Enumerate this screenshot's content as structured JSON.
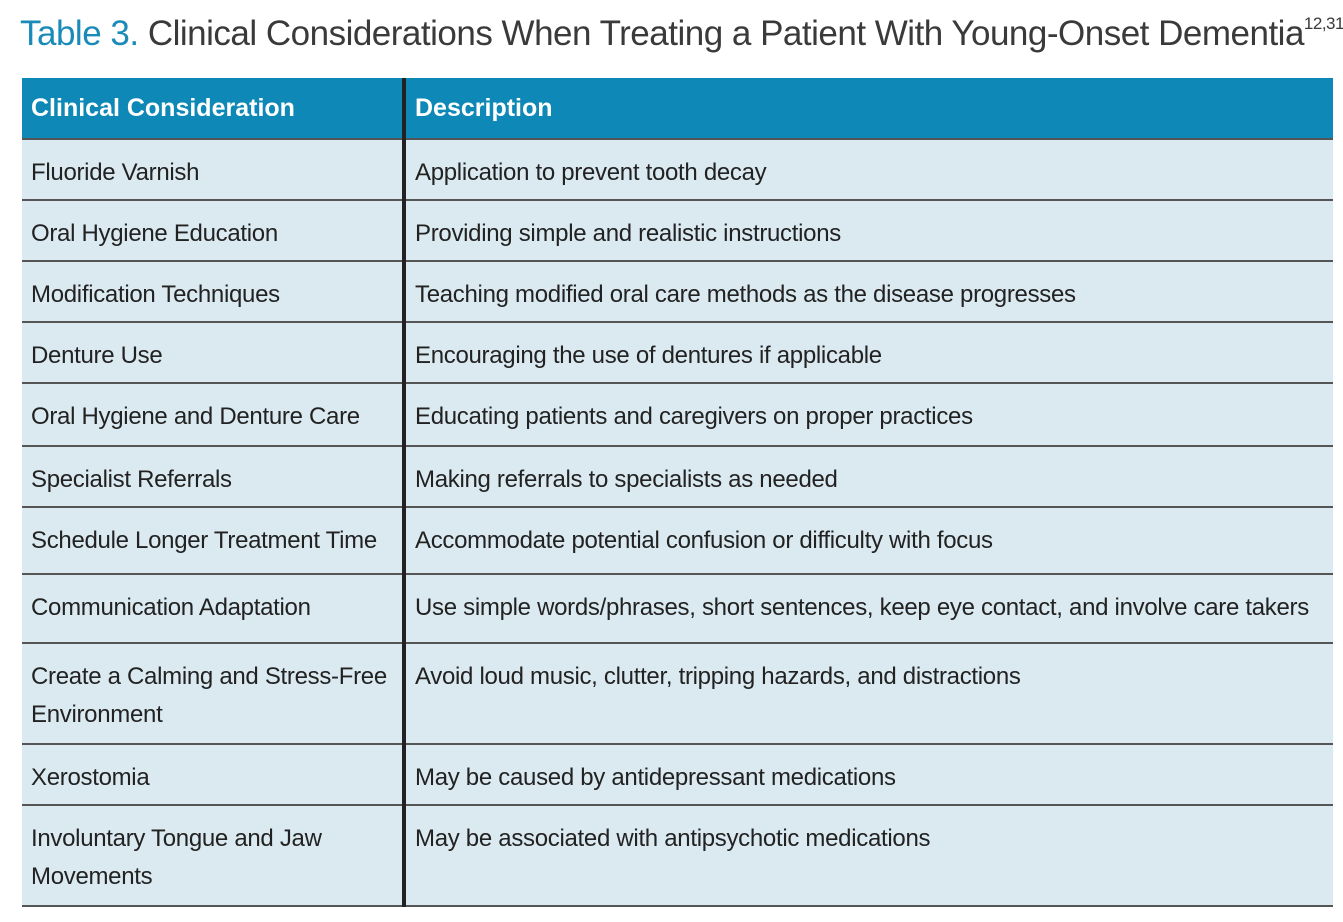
{
  "title": {
    "label": "Table 3.",
    "text": "Clinical Considerations When Treating a Patient With Young-Onset Dementia",
    "superscript": "12,31"
  },
  "table": {
    "headers": [
      "Clinical Consideration",
      "Description"
    ],
    "rows": [
      [
        "Fluoride Varnish",
        "Application to prevent tooth decay"
      ],
      [
        "Oral Hygiene Education",
        "Providing simple and realistic instructions"
      ],
      [
        "Modification Techniques",
        "Teaching modified oral care methods as the disease progresses"
      ],
      [
        "Denture Use",
        "Encouraging the use of dentures if applicable"
      ],
      [
        "Oral Hygiene and Denture Care",
        "Educating patients and caregivers on proper practices"
      ],
      [
        "Specialist Referrals",
        "Making referrals to specialists as needed"
      ],
      [
        "Schedule Longer Treatment Time",
        "Accommodate potential confusion or difficulty with focus"
      ],
      [
        "Communication Adaptation",
        "Use simple words/phrases, short sentences, keep eye contact, and involve care takers"
      ],
      [
        "Create a Calming and Stress-Free Environment",
        "Avoid loud music, clutter, tripping hazards, and distractions"
      ],
      [
        "Xerostomia",
        "May be caused by antidepressant medications"
      ],
      [
        "Involuntary Tongue and Jaw Movements",
        "May be associated with antipsychotic medications"
      ]
    ]
  }
}
